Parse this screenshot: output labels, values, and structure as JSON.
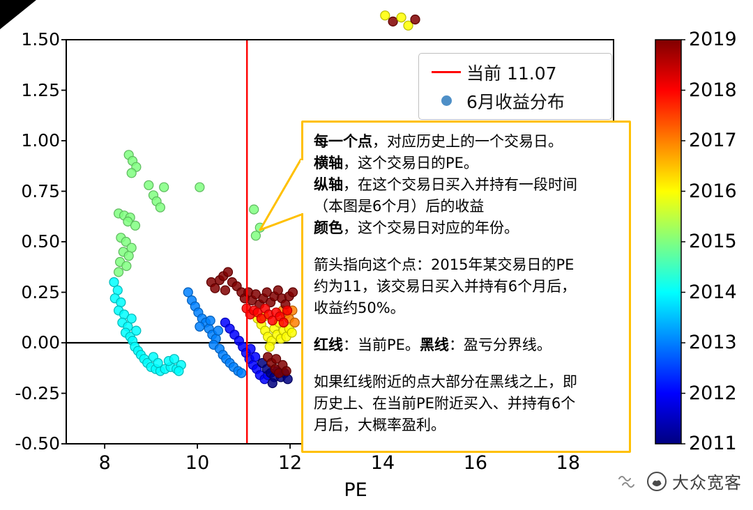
{
  "watermark": {
    "brand": "大众宽客"
  },
  "chart_data": {
    "type": "scatter",
    "title": "",
    "xlabel": "PE",
    "ylabel": "",
    "xlim": [
      7.17,
      18.98
    ],
    "ylim": [
      -0.5,
      1.5
    ],
    "xticks": [
      8,
      10,
      12,
      14,
      16,
      18
    ],
    "yticks": [
      -0.5,
      -0.25,
      0,
      0.25,
      0.5,
      0.75,
      1,
      1.25,
      1.5
    ],
    "ytick_labels": [
      "-0.50",
      "-0.25",
      "0.00",
      "0.25",
      "0.50",
      "0.75",
      "1.00",
      "1.25",
      "1.50"
    ],
    "grid": false,
    "legend_position": "upper-right",
    "legend": {
      "items": [
        {
          "marker": "line",
          "color": "#ff0000",
          "label": "当前 11.07"
        },
        {
          "marker": "dot",
          "color": "#4e8fc7",
          "label": "6月收益分布"
        }
      ]
    },
    "reference_lines": {
      "vertical_x": 11.07,
      "vertical_color": "#ff0000",
      "vertical_label": "当前 11.07",
      "horizontal_y": 0,
      "horizontal_color": "#000000"
    },
    "colorbar": {
      "min": 2011,
      "max": 2019,
      "ticks": [
        2011,
        2012,
        2013,
        2014,
        2015,
        2016,
        2017,
        2018,
        2019
      ],
      "colormap": "jet",
      "gradient": [
        {
          "o": 0,
          "c": "#000080"
        },
        {
          "o": 12.5,
          "c": "#0000ff"
        },
        {
          "o": 25,
          "c": "#0080ff"
        },
        {
          "o": 37.5,
          "c": "#00ffff"
        },
        {
          "o": 50,
          "c": "#80ff80"
        },
        {
          "o": 62.5,
          "c": "#ffff00"
        },
        {
          "o": 75,
          "c": "#ff8000"
        },
        {
          "o": 87.5,
          "c": "#ff0000"
        },
        {
          "o": 100,
          "c": "#800000"
        }
      ]
    },
    "points": [
      [
        8.52,
        0.93,
        2015
      ],
      [
        8.6,
        0.9,
        2015
      ],
      [
        8.68,
        0.87,
        2015
      ],
      [
        8.58,
        0.84,
        2015
      ],
      [
        8.95,
        0.78,
        2015
      ],
      [
        9.28,
        0.77,
        2015
      ],
      [
        10.05,
        0.77,
        2015
      ],
      [
        9.05,
        0.73,
        2015
      ],
      [
        9.12,
        0.7,
        2015
      ],
      [
        9.2,
        0.67,
        2015
      ],
      [
        8.3,
        0.64,
        2015
      ],
      [
        8.42,
        0.63,
        2015
      ],
      [
        8.55,
        0.62,
        2015
      ],
      [
        8.5,
        0.6,
        2015
      ],
      [
        8.66,
        0.58,
        2015
      ],
      [
        8.35,
        0.52,
        2015
      ],
      [
        8.46,
        0.5,
        2015
      ],
      [
        8.58,
        0.47,
        2015
      ],
      [
        8.4,
        0.45,
        2015
      ],
      [
        8.52,
        0.43,
        2015
      ],
      [
        8.33,
        0.4,
        2015
      ],
      [
        8.47,
        0.38,
        2015
      ],
      [
        8.3,
        0.35,
        2015
      ],
      [
        11.22,
        0.66,
        2015
      ],
      [
        11.35,
        0.57,
        2015
      ],
      [
        11.26,
        0.53,
        2015
      ],
      [
        8.2,
        0.3,
        2014
      ],
      [
        8.28,
        0.26,
        2014
      ],
      [
        8.22,
        0.22,
        2014
      ],
      [
        8.35,
        0.2,
        2014
      ],
      [
        8.3,
        0.16,
        2014
      ],
      [
        8.42,
        0.14,
        2014
      ],
      [
        8.38,
        0.1,
        2014
      ],
      [
        8.5,
        0.08,
        2014
      ],
      [
        8.45,
        0.05,
        2014
      ],
      [
        8.55,
        0.03,
        2014
      ],
      [
        8.6,
        0.01,
        2014
      ],
      [
        8.65,
        -0.02,
        2014
      ],
      [
        8.72,
        -0.04,
        2014
      ],
      [
        8.78,
        -0.06,
        2014
      ],
      [
        8.85,
        -0.08,
        2014
      ],
      [
        8.92,
        -0.1,
        2014
      ],
      [
        9,
        -0.12,
        2014
      ],
      [
        9.1,
        -0.13,
        2014
      ],
      [
        9.2,
        -0.14,
        2014
      ],
      [
        9.3,
        -0.13,
        2014
      ],
      [
        9.42,
        -0.12,
        2014
      ],
      [
        9.55,
        -0.13,
        2014
      ],
      [
        9.65,
        -0.11,
        2014
      ],
      [
        9.38,
        -0.09,
        2014
      ],
      [
        9.05,
        -0.07,
        2014
      ],
      [
        8.58,
        0.12,
        2014
      ],
      [
        8.68,
        0.06,
        2014
      ],
      [
        9.15,
        -0.1,
        2014
      ],
      [
        9.5,
        -0.08,
        2014
      ],
      [
        9.6,
        -0.14,
        2014
      ],
      [
        9.8,
        0.25,
        2013
      ],
      [
        9.88,
        0.21,
        2013
      ],
      [
        9.95,
        0.18,
        2013
      ],
      [
        10.02,
        0.15,
        2013
      ],
      [
        10.1,
        0.12,
        2013
      ],
      [
        10.18,
        0.1,
        2013
      ],
      [
        10.05,
        0.08,
        2013
      ],
      [
        10.25,
        0.07,
        2013
      ],
      [
        10.32,
        0.04,
        2013
      ],
      [
        10.4,
        0.02,
        2013
      ],
      [
        10.35,
        -0.01,
        2013
      ],
      [
        10.48,
        -0.03,
        2013
      ],
      [
        10.55,
        -0.06,
        2013
      ],
      [
        10.62,
        -0.08,
        2013
      ],
      [
        10.7,
        -0.1,
        2013
      ],
      [
        10.78,
        -0.12,
        2013
      ],
      [
        10.88,
        -0.14,
        2013
      ],
      [
        10.95,
        -0.15,
        2013
      ],
      [
        10.28,
        0.11,
        2013
      ],
      [
        10.45,
        0.06,
        2013
      ],
      [
        10.6,
        0.1,
        2012
      ],
      [
        10.7,
        0.07,
        2012
      ],
      [
        10.8,
        0.04,
        2012
      ],
      [
        10.9,
        0.01,
        2012
      ],
      [
        10.98,
        -0.02,
        2012
      ],
      [
        11.05,
        -0.05,
        2012
      ],
      [
        11.12,
        -0.08,
        2012
      ],
      [
        11.2,
        -0.11,
        2012
      ],
      [
        11.28,
        -0.13,
        2012
      ],
      [
        11.35,
        -0.16,
        2012
      ],
      [
        11.45,
        -0.18,
        2012
      ],
      [
        11.52,
        -0.16,
        2012
      ],
      [
        11.15,
        -0.03,
        2012
      ],
      [
        11.25,
        -0.07,
        2012
      ],
      [
        11.4,
        -0.1,
        2011
      ],
      [
        11.5,
        -0.13,
        2011
      ],
      [
        11.58,
        -0.15,
        2011
      ],
      [
        11.66,
        -0.17,
        2011
      ],
      [
        11.72,
        -0.14,
        2011
      ],
      [
        11.8,
        -0.17,
        2011
      ],
      [
        11.62,
        -0.2,
        2011
      ],
      [
        11.88,
        -0.15,
        2011
      ],
      [
        11.95,
        -0.18,
        2011
      ],
      [
        11.3,
        0.12,
        2016
      ],
      [
        11.38,
        0.09,
        2016
      ],
      [
        11.46,
        0.06,
        2016
      ],
      [
        11.52,
        0.03,
        2016
      ],
      [
        11.6,
        0.01,
        2016
      ],
      [
        11.66,
        0.07,
        2016
      ],
      [
        11.72,
        0.04,
        2016
      ],
      [
        11.8,
        0.02,
        2016
      ],
      [
        11.86,
        0.06,
        2016
      ],
      [
        11.92,
        0.03,
        2016
      ],
      [
        11.98,
        0.07,
        2016
      ],
      [
        12.04,
        0.05,
        2016
      ],
      [
        11.44,
        0.13,
        2016
      ],
      [
        11.76,
        0.1,
        2016
      ],
      [
        11.56,
        -0.02,
        2016
      ],
      [
        11.9,
        0.14,
        2017
      ],
      [
        11.98,
        0.12,
        2017
      ],
      [
        12.05,
        0.16,
        2017
      ],
      [
        12.1,
        0.1,
        2017
      ],
      [
        11.84,
        0.16,
        2017
      ],
      [
        10.3,
        0.3,
        2019
      ],
      [
        10.38,
        0.27,
        2019
      ],
      [
        10.48,
        0.31,
        2019
      ],
      [
        10.56,
        0.33,
        2019
      ],
      [
        10.66,
        0.35,
        2019
      ],
      [
        10.75,
        0.3,
        2019
      ],
      [
        10.85,
        0.28,
        2019
      ],
      [
        10.6,
        0.26,
        2019
      ],
      [
        10.95,
        0.25,
        2019
      ],
      [
        11.02,
        0.22,
        2019
      ],
      [
        11.1,
        0.25,
        2019
      ],
      [
        11.18,
        0.21,
        2019
      ],
      [
        11.26,
        0.24,
        2019
      ],
      [
        11.34,
        0.19,
        2019
      ],
      [
        11.42,
        0.22,
        2019
      ],
      [
        11.5,
        0.25,
        2019
      ],
      [
        11.58,
        0.2,
        2019
      ],
      [
        11.66,
        0.23,
        2019
      ],
      [
        11.74,
        0.26,
        2019
      ],
      [
        11.82,
        0.22,
        2019
      ],
      [
        11.9,
        0.19,
        2019
      ],
      [
        11.98,
        0.23,
        2019
      ],
      [
        12.06,
        0.25,
        2019
      ],
      [
        11.06,
        0.17,
        2018
      ],
      [
        11.14,
        0.14,
        2018
      ],
      [
        11.22,
        0.16,
        2018
      ],
      [
        11.3,
        0.15,
        2018
      ],
      [
        11.38,
        0.12,
        2018
      ],
      [
        11.46,
        0.17,
        2018
      ],
      [
        11.54,
        0.14,
        2018
      ],
      [
        11.62,
        0.11,
        2018
      ],
      [
        11.7,
        0.15,
        2018
      ],
      [
        11.78,
        0.13,
        2018
      ],
      [
        11.86,
        0.1,
        2018
      ],
      [
        11.94,
        0.16,
        2018
      ],
      [
        11.52,
        -0.07,
        2019
      ],
      [
        11.6,
        -0.1,
        2019
      ],
      [
        11.68,
        -0.13,
        2019
      ],
      [
        11.76,
        -0.15,
        2019
      ],
      [
        11.84,
        -0.11,
        2019
      ],
      [
        11.92,
        -0.14,
        2019
      ],
      [
        11.7,
        -0.08,
        2019
      ],
      [
        14.05,
        1.62,
        2016
      ],
      [
        14.22,
        1.59,
        2019
      ],
      [
        14.4,
        1.61,
        2016
      ],
      [
        14.55,
        1.57,
        2016
      ],
      [
        14.7,
        1.6,
        2019
      ]
    ]
  },
  "annotation": {
    "border_color": "#ffc000",
    "lines": [
      [
        {
          "t": "每一个点",
          "b": true
        },
        {
          "t": "，对应历史上的一个交易日。",
          "b": false
        }
      ],
      [
        {
          "t": "横轴",
          "b": true
        },
        {
          "t": "，这个交易日的PE。",
          "b": false
        }
      ],
      [
        {
          "t": "纵轴",
          "b": true
        },
        {
          "t": "，在这个交易日买入并持有一段时间",
          "b": false
        }
      ],
      [
        {
          "t": "（本图是6个月）后的收益",
          "b": false
        }
      ],
      [
        {
          "t": "颜色",
          "b": true
        },
        {
          "t": "，这个交易日对应的年份。",
          "b": false
        }
      ],
      [],
      [
        {
          "t": "箭头指向这个点：2015年某交易日的PE",
          "b": false
        }
      ],
      [
        {
          "t": "约为11，该交易日买入并持有6个月后，",
          "b": false
        }
      ],
      [
        {
          "t": "收益约50%。",
          "b": false
        }
      ],
      [],
      [
        {
          "t": "红线",
          "b": true
        },
        {
          "t": "：当前PE。",
          "b": false
        },
        {
          "t": "黑线",
          "b": true
        },
        {
          "t": "：盈亏分界线。",
          "b": false
        }
      ],
      [],
      [
        {
          "t": "如果红线附近的点大部分在黑线之上，即",
          "b": false
        }
      ],
      [
        {
          "t": "历史上、在当前PE附近买入、并持有6个",
          "b": false
        }
      ],
      [
        {
          "t": "月后，大概率盈利。",
          "b": false
        }
      ]
    ]
  }
}
